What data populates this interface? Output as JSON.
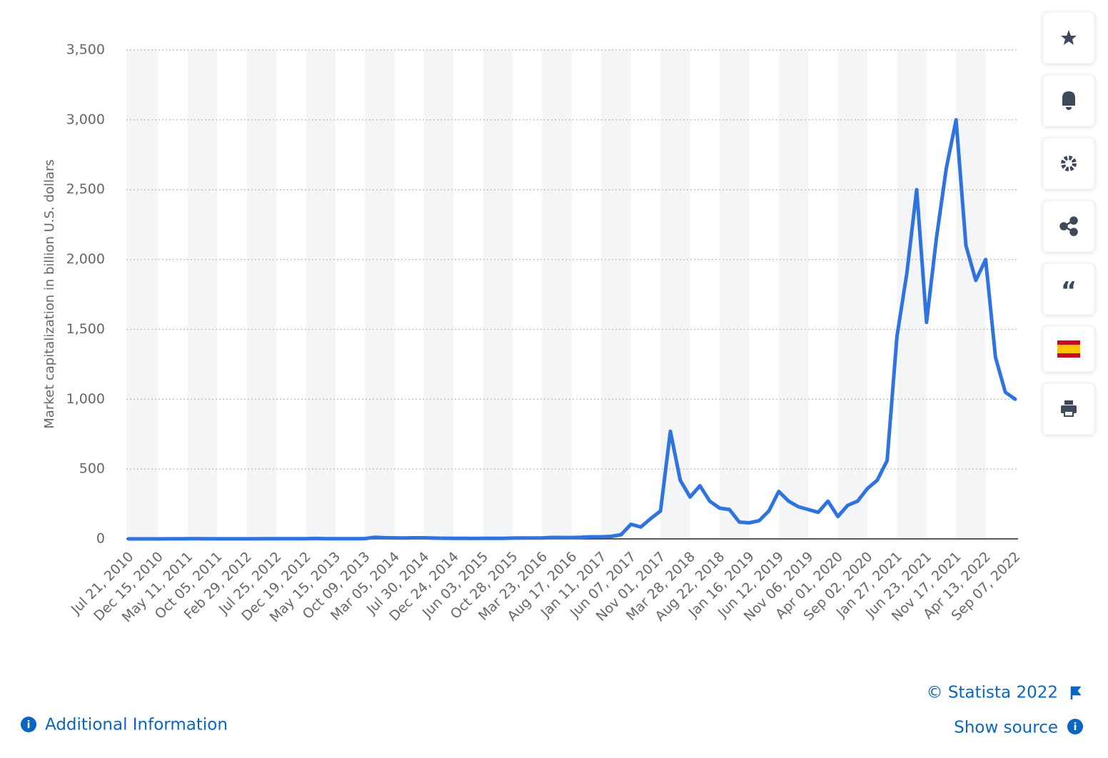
{
  "chart_data": {
    "type": "line",
    "y_label": "Market capitalization in billion U.S. dollars",
    "color": "#2f73e0",
    "grid": true,
    "ylim": [
      0,
      3500
    ],
    "yticks": [
      0,
      500,
      {
        "value": 1000,
        "label": "1,000"
      },
      {
        "value": 1500,
        "label": "1,500"
      },
      {
        "value": 2000,
        "label": "2,000"
      },
      {
        "value": 2500,
        "label": "2,500"
      },
      {
        "value": 3000,
        "label": "3,000"
      },
      {
        "value": 3500,
        "label": "3,500"
      }
    ],
    "categories": [
      "Jul 21, 2010",
      null,
      null,
      "Dec 15, 2010",
      null,
      null,
      "May 11, 2011",
      null,
      null,
      "Oct 05, 2011",
      null,
      null,
      "Feb 29, 2012",
      null,
      null,
      "Jul 25, 2012",
      null,
      null,
      "Dec 19, 2012",
      null,
      null,
      "May 15, 2013",
      null,
      null,
      "Oct 09, 2013",
      null,
      null,
      "Mar 05, 2014",
      null,
      null,
      "Jul 30, 2014",
      null,
      null,
      "Dec 24, 2014",
      null,
      null,
      "Jun 03, 2015",
      null,
      null,
      "Oct 28, 2015",
      null,
      null,
      "Mar 23, 2016",
      null,
      null,
      "Aug 17, 2016",
      null,
      null,
      "Jan 11, 2017",
      null,
      null,
      "Jun 07, 2017",
      null,
      null,
      "Nov 01, 2017",
      null,
      null,
      "Mar 28, 2018",
      null,
      null,
      "Aug 22, 2018",
      null,
      null,
      "Jan 16, 2019",
      null,
      null,
      "Jun 12, 2019",
      null,
      null,
      "Nov 06, 2019",
      null,
      null,
      "Apr 01, 2020",
      null,
      null,
      "Sep 02, 2020",
      null,
      null,
      "Jan 27, 2021",
      null,
      null,
      "Jun 23, 2021",
      null,
      null,
      "Nov 17, 2021",
      null,
      null,
      "Apr 13, 2022",
      null,
      null,
      "Sep 07, 2022"
    ],
    "values": [
      0.0,
      0.0,
      0.0,
      0.2,
      0.3,
      0.6,
      1.5,
      0.8,
      0.4,
      0.3,
      0.5,
      0.5,
      0.5,
      0.5,
      0.8,
      1.1,
      1.2,
      1.4,
      1.5,
      3,
      1.4,
      1.3,
      1.0,
      1.4,
      2.0,
      12,
      8,
      7,
      6,
      7.5,
      7.5,
      5.5,
      4.5,
      3.5,
      3.5,
      3.3,
      3.6,
      3.5,
      3.5,
      5.5,
      6.5,
      6.3,
      6.8,
      10,
      9.5,
      9.6,
      11,
      15,
      15,
      18,
      30,
      105,
      85,
      145,
      200,
      770,
      420,
      300,
      380,
      270,
      220,
      210,
      120,
      115,
      130,
      200,
      340,
      270,
      230,
      210,
      190,
      270,
      160,
      240,
      270,
      360,
      420,
      560,
      1450,
      1900,
      2500,
      1550,
      2150,
      2650,
      3000,
      2100,
      1850,
      2000,
      1300,
      1050,
      1000
    ]
  },
  "footer": {
    "copyright": "© Statista 2022",
    "show_source": "Show source",
    "additional_info": "Additional Information"
  }
}
